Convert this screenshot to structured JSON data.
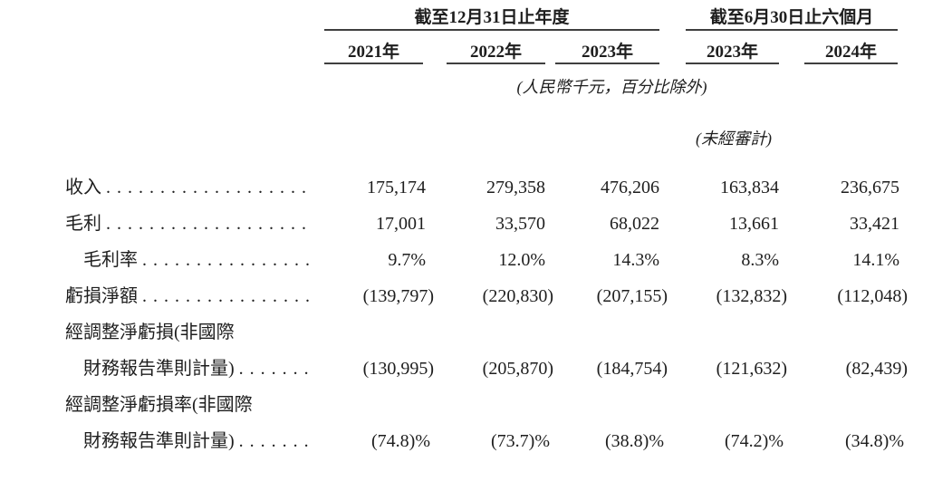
{
  "table": {
    "col_groups": [
      {
        "label": "截至12月31日止年度",
        "columns": [
          "2021年",
          "2022年",
          "2023年"
        ]
      },
      {
        "label": "截至6月30日止六個月",
        "columns": [
          "2023年",
          "2024年"
        ]
      }
    ],
    "columns": [
      "2021年",
      "2022年",
      "2023年",
      "2023年",
      "2024年"
    ],
    "unit_note": "(人民幣千元，百分比除外)",
    "audit_note": "(未經審計)",
    "leader_char": ".",
    "rows": [
      {
        "label": "收入",
        "indent": false,
        "leader": true,
        "values": [
          "175,174",
          "279,358",
          "476,206",
          "163,834",
          "236,675"
        ]
      },
      {
        "label": "毛利",
        "indent": false,
        "leader": true,
        "values": [
          "17,001",
          "33,570",
          "68,022",
          "13,661",
          "33,421"
        ]
      },
      {
        "label": "毛利率",
        "indent": true,
        "leader": true,
        "values": [
          "9.7%",
          "12.0%",
          "14.3%",
          "8.3%",
          "14.1%"
        ]
      },
      {
        "label": "虧損淨額",
        "indent": false,
        "leader": true,
        "values": [
          "(139,797)",
          "(220,830)",
          "(207,155)",
          "(132,832)",
          "(112,048)"
        ]
      },
      {
        "label": "經調整淨虧損(非國際",
        "indent": false,
        "leader": false,
        "values": [
          "",
          "",
          "",
          "",
          ""
        ]
      },
      {
        "label": "財務報告準則計量)",
        "indent": true,
        "leader": true,
        "values": [
          "(130,995)",
          "(205,870)",
          "(184,754)",
          "(121,632)",
          "(82,439)"
        ]
      },
      {
        "label": "經調整淨虧損率(非國際",
        "indent": false,
        "leader": false,
        "values": [
          "",
          "",
          "",
          "",
          ""
        ]
      },
      {
        "label": "財務報告準則計量)",
        "indent": true,
        "leader": true,
        "values": [
          "(74.8)%",
          "(73.7)%",
          "(38.8)%",
          "(74.2)%",
          "(34.8)%"
        ]
      }
    ]
  }
}
